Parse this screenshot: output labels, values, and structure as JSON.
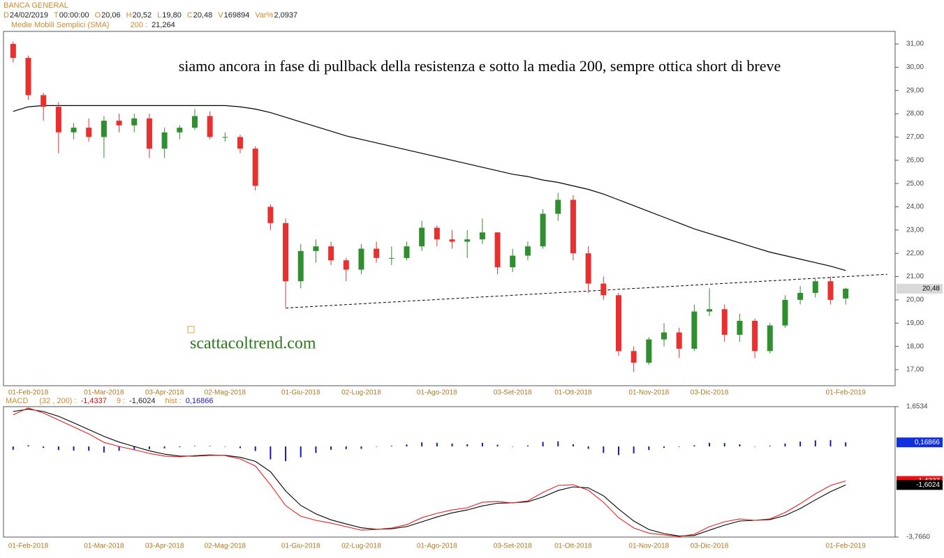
{
  "header": {
    "symbol": "BANCA GENERAL",
    "fields": [
      {
        "label": "D",
        "value": "24/02/2019"
      },
      {
        "label": "T",
        "value": "00:00:00"
      },
      {
        "label": "O",
        "value": "20,06"
      },
      {
        "label": "H",
        "value": "20,52"
      },
      {
        "label": "L",
        "value": "19,80"
      },
      {
        "label": "C",
        "value": "20,48"
      },
      {
        "label": "V",
        "value": "169894"
      },
      {
        "label": "Var%",
        "value": "2,0937"
      }
    ]
  },
  "chart_data": [
    {
      "type": "candlestick",
      "annotation": "siamo ancora in fase di pullback della resistenza e sotto la media 200, sempre ottica short di breve",
      "watermark": "scattacoltrend.com",
      "categories": [
        null,
        "01-Feb-2018",
        null,
        null,
        null,
        null,
        "01-Mar-2018",
        null,
        null,
        null,
        "03-Apr-2018",
        null,
        null,
        null,
        "02-Mag-2018",
        null,
        null,
        null,
        null,
        "01-Giu-2018",
        null,
        null,
        null,
        "02-Lug-2018",
        null,
        null,
        null,
        null,
        "01-Ago-2018",
        null,
        null,
        null,
        null,
        "03-Set-2018",
        null,
        null,
        null,
        "01-Ott-2018",
        null,
        null,
        null,
        null,
        "01-Nov-2018",
        null,
        null,
        null,
        "03-Dic-2018",
        null,
        null,
        null,
        null,
        null,
        null,
        null,
        null,
        "01-Feb-2019"
      ],
      "open": [
        31.0,
        30.4,
        28.8,
        28.3,
        27.2,
        27.4,
        27.0,
        27.7,
        27.5,
        27.8,
        26.5,
        27.2,
        27.4,
        27.9,
        27.0,
        27.0,
        26.5,
        24.0,
        23.3,
        20.8,
        22.1,
        22.3,
        21.7,
        21.3,
        22.2,
        21.8,
        21.8,
        22.3,
        23.1,
        22.6,
        22.5,
        22.6,
        22.9,
        21.4,
        21.9,
        22.3,
        23.7,
        24.3,
        22.0,
        20.7,
        20.2,
        17.8,
        17.3,
        18.3,
        18.6,
        17.9,
        19.5,
        19.6,
        18.5,
        19.1,
        17.8,
        18.9,
        20.0,
        20.3,
        20.8,
        20.06
      ],
      "high": [
        31.1,
        30.5,
        28.9,
        28.5,
        27.6,
        27.8,
        27.9,
        28.0,
        28.0,
        28.0,
        27.4,
        27.5,
        28.2,
        28.1,
        27.2,
        27.1,
        26.6,
        24.1,
        23.5,
        22.4,
        22.6,
        22.5,
        21.8,
        22.4,
        22.5,
        22.3,
        22.5,
        23.4,
        23.2,
        23.0,
        23.0,
        23.5,
        22.9,
        22.2,
        22.5,
        23.9,
        24.6,
        24.5,
        22.3,
        21.0,
        20.3,
        18.0,
        18.4,
        19.0,
        18.8,
        19.8,
        20.5,
        19.8,
        19.4,
        19.2,
        19.0,
        20.2,
        20.6,
        20.9,
        21.0,
        20.52
      ],
      "low": [
        30.2,
        28.6,
        27.7,
        26.3,
        26.9,
        26.8,
        26.1,
        27.2,
        27.2,
        26.1,
        26.1,
        26.9,
        27.3,
        26.9,
        26.8,
        26.3,
        24.7,
        23.0,
        19.7,
        20.5,
        21.6,
        21.5,
        20.8,
        21.1,
        21.6,
        21.5,
        21.7,
        22.1,
        22.3,
        22.2,
        21.8,
        22.4,
        21.1,
        21.2,
        21.7,
        22.2,
        23.4,
        21.7,
        20.3,
        20.0,
        17.6,
        16.9,
        17.2,
        18.0,
        17.5,
        17.8,
        19.3,
        18.2,
        18.2,
        17.5,
        17.7,
        18.8,
        19.8,
        20.1,
        19.8,
        19.8
      ],
      "close": [
        30.4,
        28.8,
        28.3,
        27.2,
        27.4,
        27.0,
        27.7,
        27.5,
        27.8,
        26.5,
        27.2,
        27.4,
        27.9,
        27.0,
        27.0,
        26.5,
        24.9,
        23.3,
        20.8,
        22.1,
        22.3,
        21.7,
        21.3,
        22.2,
        21.8,
        21.8,
        22.3,
        23.1,
        22.6,
        22.5,
        22.6,
        22.9,
        21.4,
        21.9,
        22.3,
        23.7,
        24.3,
        22.0,
        20.7,
        20.2,
        17.8,
        17.3,
        18.3,
        18.6,
        17.9,
        19.5,
        19.6,
        18.5,
        19.1,
        17.8,
        18.9,
        20.0,
        20.3,
        20.8,
        20.0,
        20.48
      ],
      "close_label": "20,48",
      "up_color": "#2f8f2f",
      "down_color": "#e8312f",
      "sma": {
        "name": "Medie Mobili Semplici (SMA)",
        "period_label": "200 :",
        "last_label": "21,264",
        "color": "#000000",
        "values": [
          28.1,
          28.3,
          28.35,
          28.35,
          28.35,
          28.35,
          28.35,
          28.35,
          28.35,
          28.35,
          28.35,
          28.35,
          28.35,
          28.35,
          28.35,
          28.3,
          28.2,
          28.05,
          27.85,
          27.65,
          27.45,
          27.25,
          27.05,
          26.9,
          26.75,
          26.6,
          26.45,
          26.3,
          26.15,
          26.0,
          25.85,
          25.7,
          25.55,
          25.4,
          25.3,
          25.15,
          25.05,
          24.9,
          24.75,
          24.55,
          24.3,
          24.05,
          23.8,
          23.55,
          23.3,
          23.05,
          22.85,
          22.65,
          22.45,
          22.25,
          22.05,
          21.9,
          21.75,
          21.6,
          21.45,
          21.264
        ]
      },
      "trendline": {
        "x": [
          18,
          57.75
        ],
        "values": [
          19.65,
          21.1
        ]
      },
      "ylim": [
        16.31,
        31.54
      ],
      "yticks": [
        {
          "value": 17,
          "label": "17,00"
        },
        {
          "value": 18,
          "label": "18,00"
        },
        {
          "value": 19,
          "label": "19,00"
        },
        {
          "value": 20,
          "label": "20,00"
        },
        {
          "value": 21,
          "label": "21,00"
        },
        {
          "value": 22,
          "label": "22,00"
        },
        {
          "value": 23,
          "label": "23,00"
        },
        {
          "value": 24,
          "label": "24,00"
        },
        {
          "value": 25,
          "label": "25,00"
        },
        {
          "value": 26,
          "label": "26,00"
        },
        {
          "value": 27,
          "label": "27,00"
        },
        {
          "value": 28,
          "label": "28,00"
        },
        {
          "value": 29,
          "label": "29,00"
        },
        {
          "value": 30,
          "label": "30,00"
        },
        {
          "value": 31,
          "label": "31,00"
        }
      ]
    },
    {
      "type": "macd",
      "name": "MACD",
      "params_label": "(32 , 200) :",
      "signal_label": "9 :",
      "hist_label": "hist :",
      "categories": [
        null,
        "01-Feb-2018",
        null,
        null,
        null,
        null,
        "01-Mar-2018",
        null,
        null,
        null,
        "03-Apr-2018",
        null,
        null,
        null,
        "02-Mag-2018",
        null,
        null,
        null,
        null,
        "01-Giu-2018",
        null,
        null,
        null,
        "02-Lug-2018",
        null,
        null,
        null,
        null,
        "01-Ago-2018",
        null,
        null,
        null,
        null,
        "03-Set-2018",
        null,
        null,
        null,
        "01-Ott-2018",
        null,
        null,
        null,
        null,
        "01-Nov-2018",
        null,
        null,
        null,
        "03-Dic-2018",
        null,
        null,
        null,
        null,
        null,
        null,
        null,
        null,
        "01-Feb-2019"
      ],
      "series": [
        {
          "name": "MACD",
          "color": "#e8201c",
          "last_label": "-1,4337",
          "values": [
            1.31,
            1.6,
            1.39,
            1.1,
            0.81,
            0.52,
            0.17,
            0.0,
            -0.14,
            -0.29,
            -0.4,
            -0.43,
            -0.38,
            -0.35,
            -0.38,
            -0.52,
            -0.81,
            -1.59,
            -2.46,
            -2.9,
            -3.07,
            -3.19,
            -3.33,
            -3.48,
            -3.45,
            -3.39,
            -3.25,
            -2.96,
            -2.78,
            -2.64,
            -2.55,
            -2.32,
            -2.29,
            -2.35,
            -2.26,
            -1.91,
            -1.62,
            -1.59,
            -1.82,
            -2.32,
            -2.96,
            -3.39,
            -3.6,
            -3.68,
            -3.74,
            -3.65,
            -3.33,
            -3.13,
            -3.01,
            -3.07,
            -3.01,
            -2.75,
            -2.38,
            -1.97,
            -1.62,
            -1.4337
          ]
        },
        {
          "name": "Signal",
          "color": "#000000",
          "last_label": "-1,6024",
          "values": [
            1.45,
            1.55,
            1.45,
            1.25,
            0.98,
            0.7,
            0.42,
            0.18,
            0.0,
            -0.18,
            -0.32,
            -0.4,
            -0.4,
            -0.37,
            -0.37,
            -0.45,
            -0.62,
            -1.05,
            -1.85,
            -2.45,
            -2.8,
            -3.05,
            -3.22,
            -3.38,
            -3.44,
            -3.42,
            -3.33,
            -3.13,
            -2.93,
            -2.76,
            -2.64,
            -2.47,
            -2.36,
            -2.34,
            -2.3,
            -2.1,
            -1.83,
            -1.68,
            -1.72,
            -2.05,
            -2.6,
            -3.1,
            -3.45,
            -3.62,
            -3.72,
            -3.7,
            -3.48,
            -3.27,
            -3.1,
            -3.07,
            -3.04,
            -2.87,
            -2.58,
            -2.22,
            -1.88,
            -1.6024
          ]
        },
        {
          "name": "Hist",
          "color": "#1a1aa8",
          "last_label": "0,16866",
          "values": [
            -0.14,
            0.05,
            -0.06,
            -0.15,
            -0.17,
            -0.18,
            -0.25,
            -0.18,
            -0.14,
            -0.11,
            -0.08,
            -0.03,
            0.02,
            0.02,
            -0.01,
            -0.07,
            -0.19,
            -0.54,
            -0.61,
            -0.45,
            -0.27,
            -0.14,
            -0.11,
            -0.1,
            -0.01,
            0.03,
            0.08,
            0.17,
            0.15,
            0.12,
            0.09,
            0.15,
            0.07,
            -0.01,
            0.04,
            0.19,
            0.21,
            0.09,
            -0.1,
            -0.27,
            -0.36,
            -0.29,
            -0.15,
            -0.06,
            -0.02,
            0.05,
            0.15,
            0.14,
            0.09,
            0.0,
            0.03,
            0.12,
            0.2,
            0.25,
            0.26,
            0.16866
          ]
        }
      ],
      "ylim": [
        -3.766,
        1.6534
      ],
      "yticks": [
        {
          "value": 1.6534,
          "label": "1,6534"
        },
        {
          "value": -3.766,
          "label": "-3,7660"
        }
      ]
    }
  ]
}
